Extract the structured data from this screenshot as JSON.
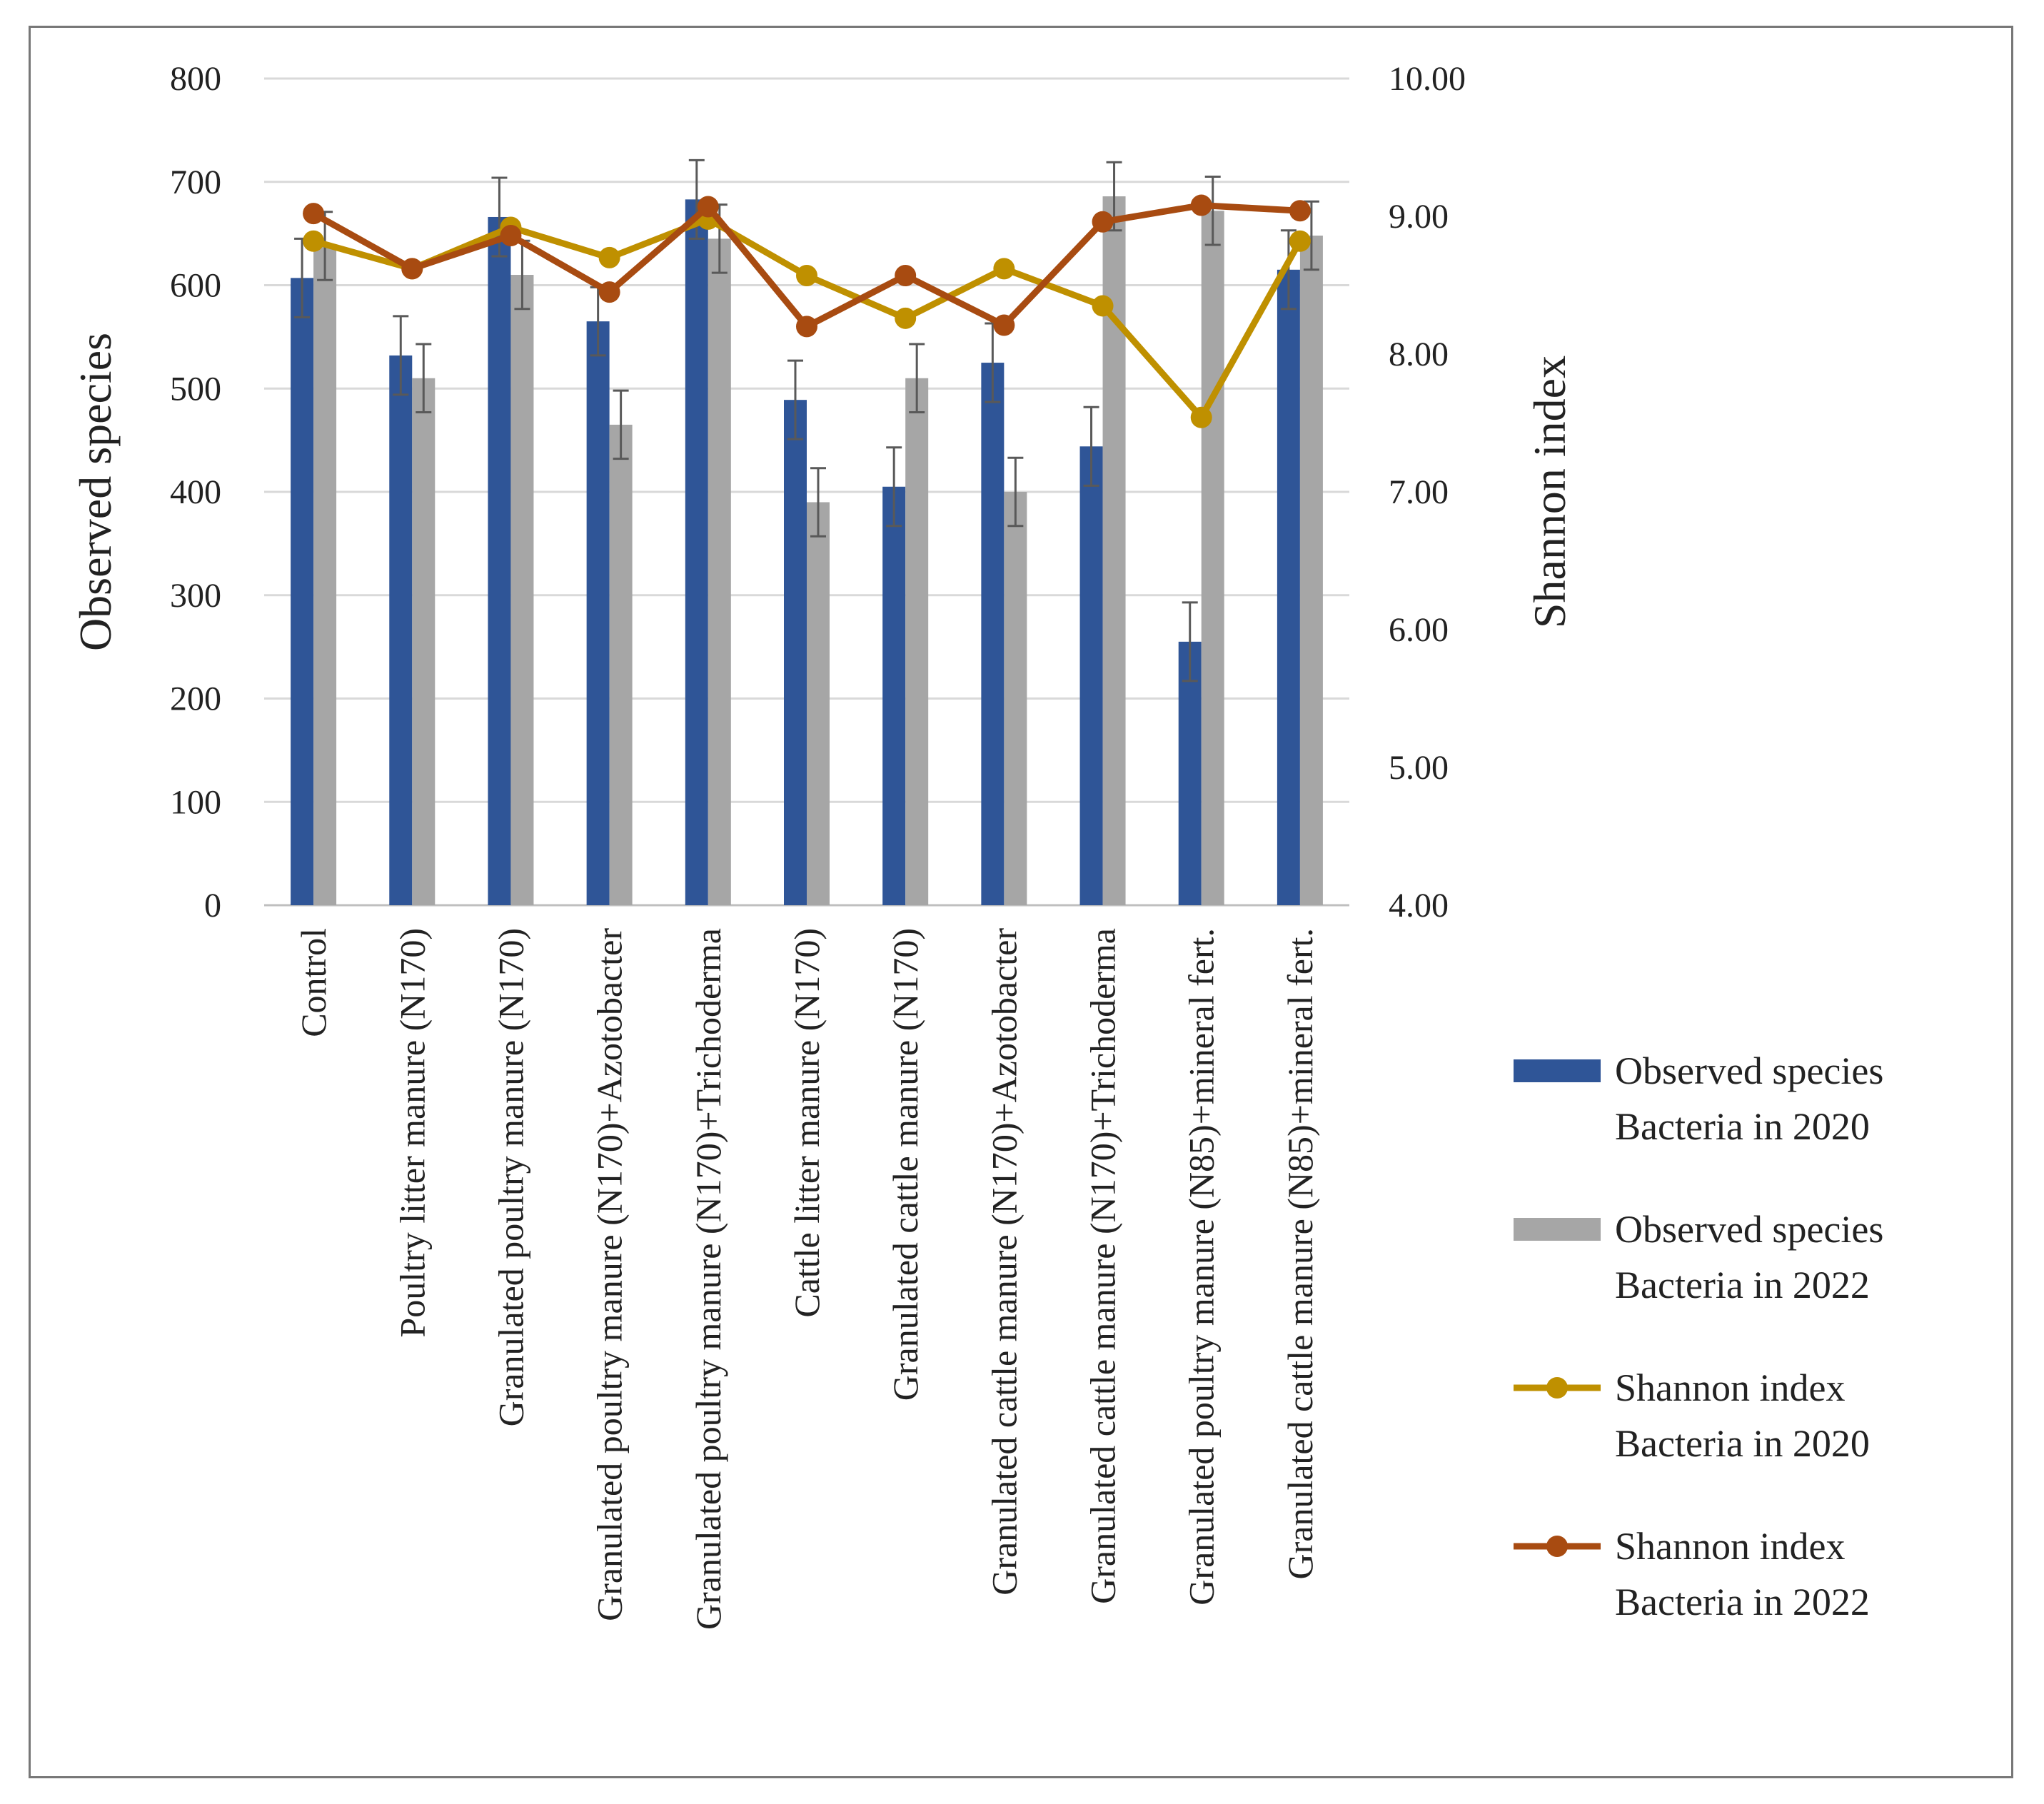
{
  "chart_data": {
    "type": "bar",
    "categories": [
      "Control",
      "Poultry litter manure (N170)",
      "Granulated poultry manure (N170)",
      "Granulated poultry manure (N170)+Azotobacter",
      "Granulated poultry manure (N170)+Trichoderma",
      "Cattle litter manure (N170)",
      "Granulated cattle manure (N170)",
      "Granulated cattle manure (N170)+Azotobacter",
      "Granulated cattle manure (N170)+Trichoderma",
      "Granulated poultry manure (N85)+mineral fert.",
      "Granulated cattle manure (N85)+mineral fert."
    ],
    "series": [
      {
        "name": "Observed species Bacteria in 2020",
        "legend_lines": [
          "Observed species",
          "Bacteria in 2020"
        ],
        "kind": "bar",
        "axis": "left",
        "color": "#2f5597",
        "values": [
          607,
          532,
          666,
          565,
          683,
          489,
          405,
          525,
          444,
          255,
          615
        ],
        "errors": [
          38,
          38,
          38,
          33,
          38,
          38,
          38,
          38,
          38,
          38,
          38
        ]
      },
      {
        "name": "Observed species Bacteria in 2022",
        "legend_lines": [
          "Observed species",
          "Bacteria in 2022"
        ],
        "kind": "bar",
        "axis": "left",
        "color": "#a6a6a6",
        "values": [
          638,
          510,
          610,
          465,
          645,
          390,
          510,
          400,
          686,
          672,
          648
        ],
        "errors": [
          33,
          33,
          33,
          33,
          33,
          33,
          33,
          33,
          33,
          33,
          33
        ]
      },
      {
        "name": "Shannon index Bacteria in 2020",
        "legend_lines": [
          "Shannon index",
          "Bacteria in 2020"
        ],
        "kind": "line",
        "axis": "right",
        "color": "#bf9000",
        "values": [
          8.82,
          8.62,
          8.92,
          8.7,
          8.98,
          8.57,
          8.26,
          8.62,
          8.35,
          7.54,
          8.82
        ]
      },
      {
        "name": "Shannon index Bacteria in 2022",
        "legend_lines": [
          "Shannon index",
          "Bacteria in 2022"
        ],
        "kind": "line",
        "axis": "right",
        "color": "#a84b11",
        "values": [
          9.02,
          8.62,
          8.86,
          8.45,
          9.07,
          8.2,
          8.57,
          8.21,
          8.96,
          9.08,
          9.04
        ]
      }
    ],
    "y_left": {
      "label": "Observed species",
      "ylim": [
        0,
        800
      ],
      "ticks": [
        "0",
        "100",
        "200",
        "300",
        "400",
        "500",
        "600",
        "700",
        "800"
      ]
    },
    "y_right": {
      "label": "Shannon index",
      "ylim": [
        4,
        10
      ],
      "ticks": [
        "4.00",
        "5.00",
        "6.00",
        "7.00",
        "8.00",
        "9.00",
        "10.00"
      ]
    },
    "grid": true,
    "legend_position": "right"
  }
}
